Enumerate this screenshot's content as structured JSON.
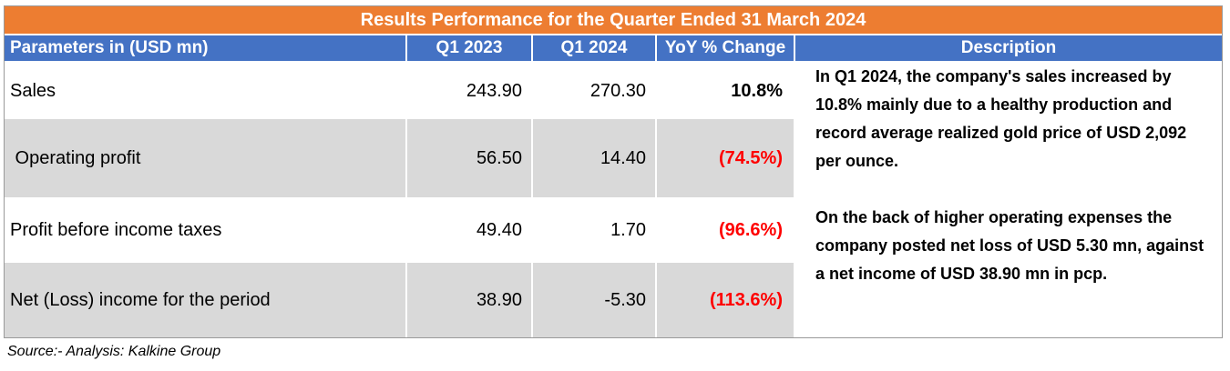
{
  "title": "Results Performance for the Quarter Ended 31 March 2024",
  "headers": {
    "parameters": "Parameters in (USD mn)",
    "q1_2023": "Q1 2023",
    "q1_2024": "Q1 2024",
    "yoy": "YoY % Change",
    "description": "Description"
  },
  "rows": [
    {
      "param": "Sales",
      "q1_2023": "243.90",
      "q1_2024": "270.30",
      "yoy": "10.8%",
      "yoy_negative": false
    },
    {
      "param": " Operating profit",
      "q1_2023": "56.50",
      "q1_2024": "14.40",
      "yoy": "(74.5%)",
      "yoy_negative": true
    },
    {
      "param": "Profit before income taxes",
      "q1_2023": "49.40",
      "q1_2024": "1.70",
      "yoy": "(96.6%)",
      "yoy_negative": true
    },
    {
      "param": "Net (Loss) income for the period",
      "q1_2023": "38.90",
      "q1_2024": "-5.30",
      "yoy": "(113.6%)",
      "yoy_negative": true
    }
  ],
  "description": {
    "para1": "In Q1 2024, the company's sales increased by 10.8% mainly due to a healthy production and record average realized gold price of USD 2,092 per ounce.",
    "para2": "On the back of higher operating expenses the company posted net loss of USD 5.30 mn, against a net income of USD 38.90 mn in pcp."
  },
  "source": "Source:- Analysis: Kalkine Group",
  "colors": {
    "title_bg": "#ED7D31",
    "header_bg": "#4472C4",
    "row_gray": "#D9D9D9",
    "negative": "#FF0000"
  }
}
